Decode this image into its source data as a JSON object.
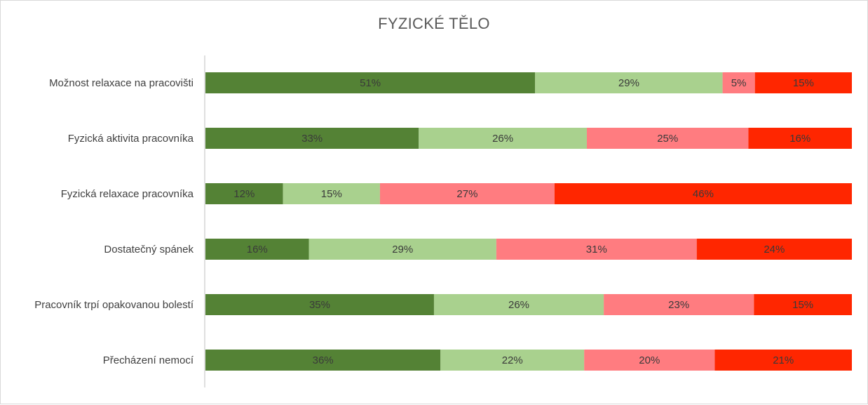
{
  "chart_data": {
    "type": "bar",
    "orientation": "horizontal",
    "stacked": "100%",
    "title": "FYZICKÉ TĚLO",
    "categories": [
      "Možnost relaxace na pracovišti",
      "Fyzická aktivita pracovníka",
      "Fyzická relaxace pracovníka",
      "Dostatečný spánek",
      "Pracovník trpí opakovanou bolestí",
      "Přecházení nemocí"
    ],
    "series": [
      {
        "color": "#548235",
        "label_color": "#3a3a3a",
        "values": [
          51,
          33,
          12,
          16,
          35,
          36
        ]
      },
      {
        "color": "#a9d18e",
        "label_color": "#3a3a3a",
        "values": [
          29,
          26,
          15,
          29,
          26,
          22
        ]
      },
      {
        "color": "#ff7c80",
        "label_color": "#3a3a3a",
        "values": [
          5,
          25,
          27,
          31,
          23,
          20
        ]
      },
      {
        "color": "#ff2600",
        "label_color": "#3a3a3a",
        "values": [
          15,
          16,
          46,
          24,
          15,
          21
        ]
      }
    ],
    "value_format": "percent",
    "legend": "none",
    "grid": false
  }
}
